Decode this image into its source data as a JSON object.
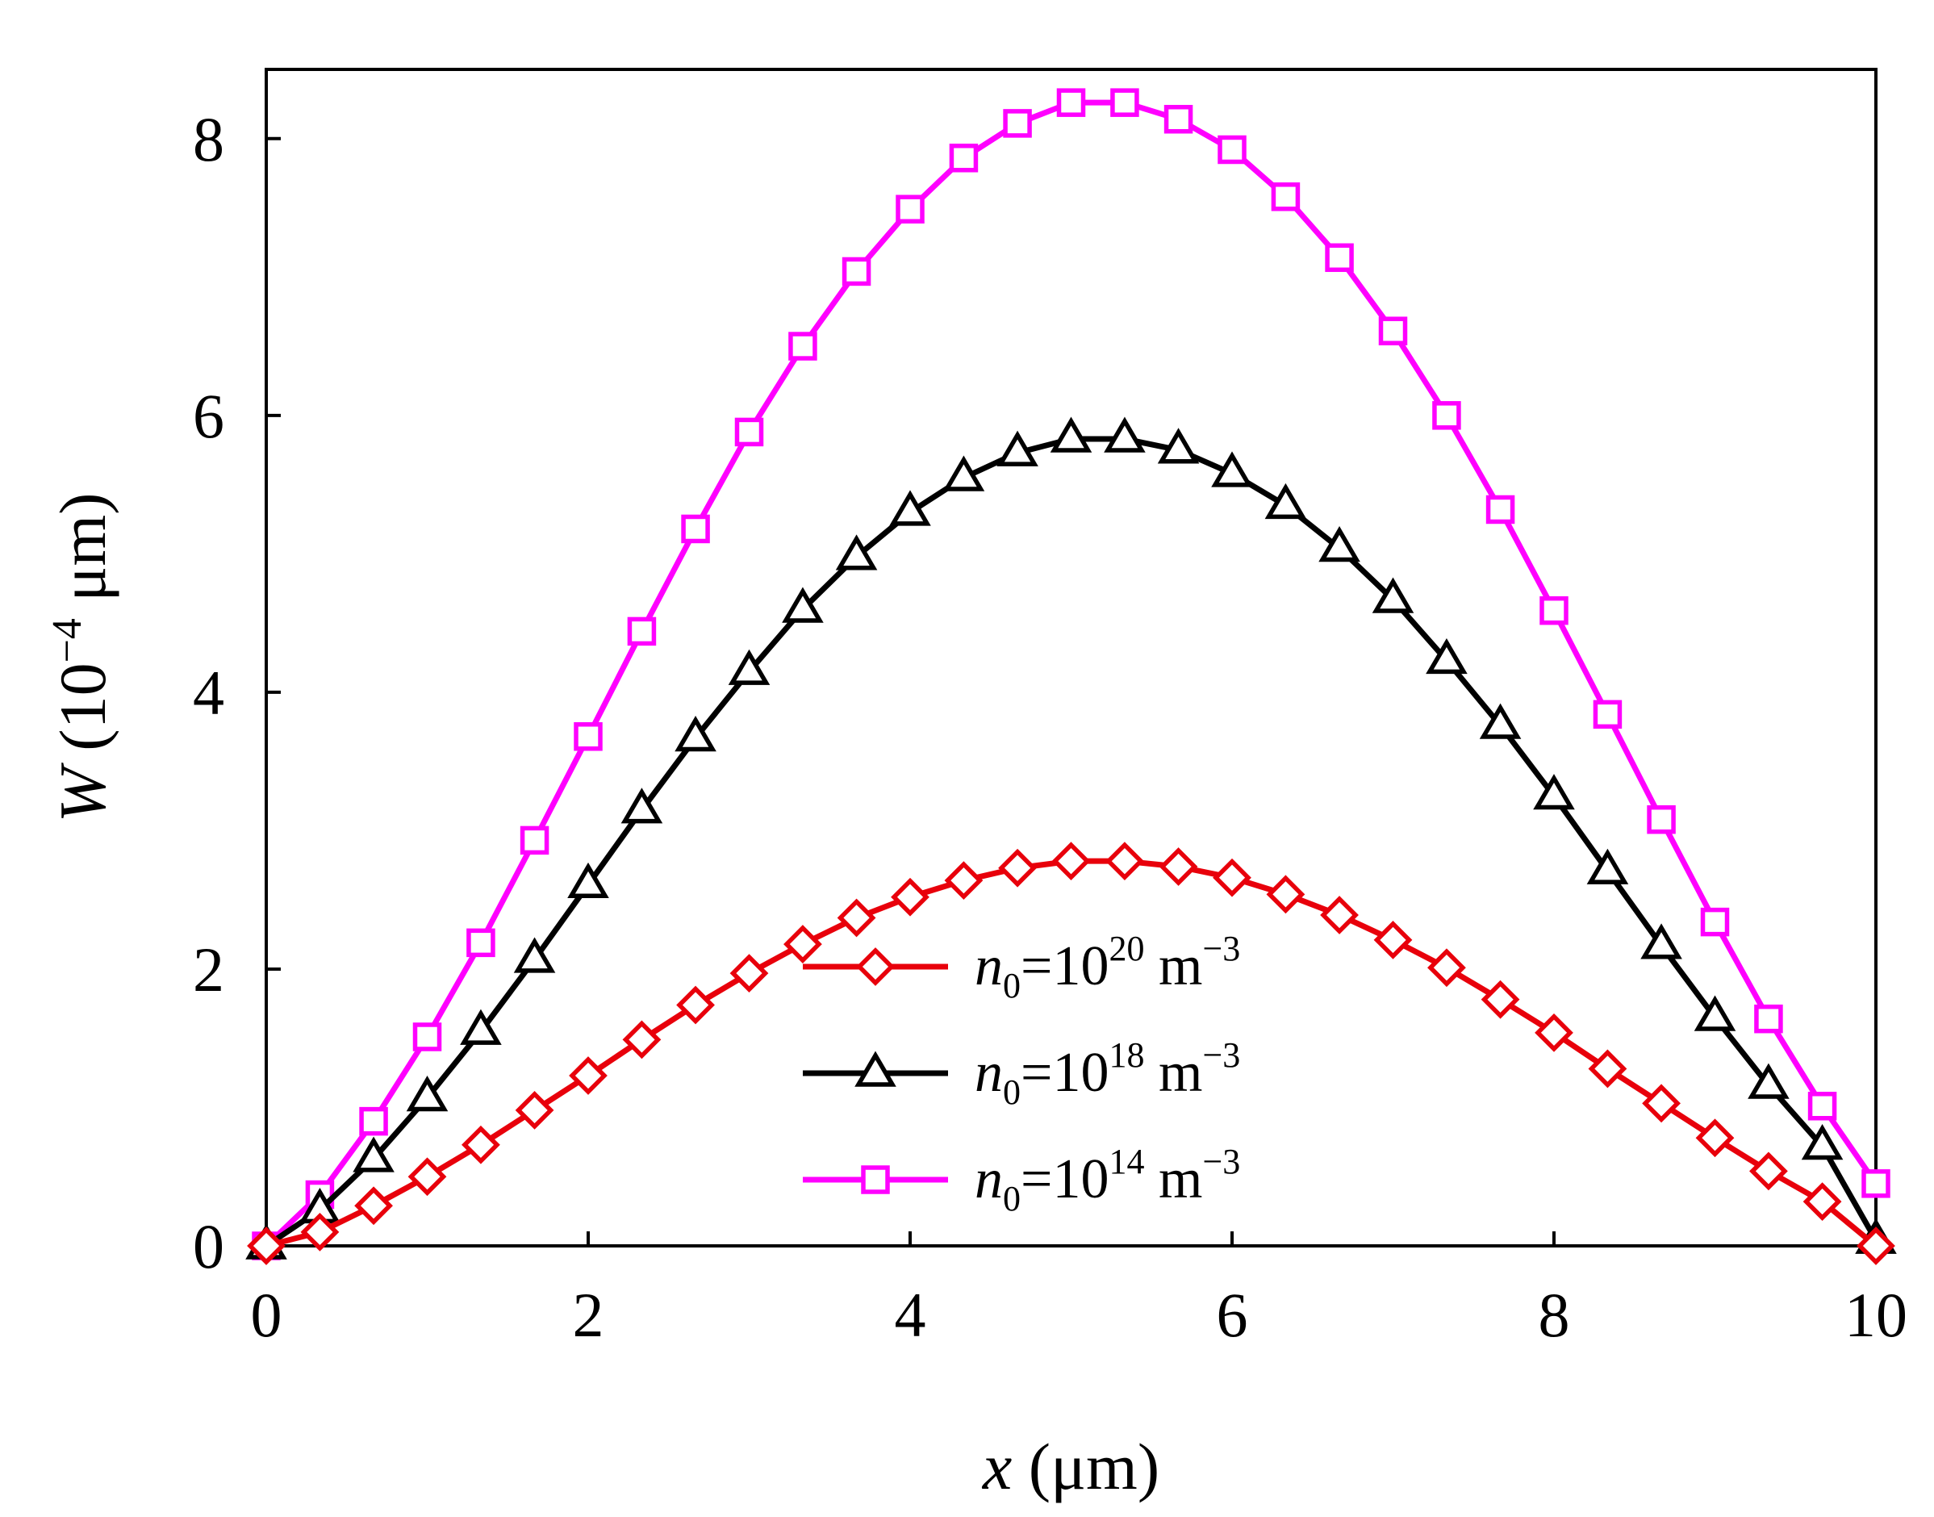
{
  "chart_data": {
    "type": "line",
    "title": "",
    "xlabel": {
      "var": "x",
      "unit": " (μm)"
    },
    "ylabel": {
      "var": "W",
      "pre": " (10",
      "exp": "−4",
      "post": " μm)"
    },
    "xlim": [
      0,
      10
    ],
    "ylim": [
      0,
      8.5
    ],
    "xticks": [
      0,
      2,
      4,
      6,
      8,
      10
    ],
    "yticks": [
      0,
      2,
      4,
      6,
      8
    ],
    "xtick_labels": [
      "0",
      "2",
      "4",
      "6",
      "8",
      "10"
    ],
    "ytick_labels": [
      "0",
      "2",
      "4",
      "6",
      "8"
    ],
    "grid": false,
    "legend_position": "lower-center",
    "x": [
      0,
      0.333,
      0.667,
      1.0,
      1.333,
      1.667,
      2.0,
      2.333,
      2.667,
      3.0,
      3.333,
      3.667,
      4.0,
      4.333,
      4.667,
      5.0,
      5.333,
      5.667,
      6.0,
      6.333,
      6.667,
      7.0,
      7.333,
      7.667,
      8.0,
      8.333,
      8.667,
      9.0,
      9.333,
      9.667,
      10.0
    ],
    "series": [
      {
        "name": "n0=10^20 m^-3",
        "label": {
          "var": "n",
          "sub": "0",
          "eq": "=10",
          "sup": "20",
          "unit": " m",
          "unit_sup": "−3"
        },
        "color": "#e8000b",
        "marker": "diamond",
        "values": [
          0.0,
          0.1,
          0.29,
          0.5,
          0.73,
          0.98,
          1.23,
          1.49,
          1.74,
          1.97,
          2.18,
          2.37,
          2.52,
          2.64,
          2.73,
          2.78,
          2.78,
          2.74,
          2.66,
          2.54,
          2.39,
          2.21,
          2.01,
          1.78,
          1.54,
          1.28,
          1.03,
          0.78,
          0.54,
          0.32,
          0.0
        ]
      },
      {
        "name": "n0=10^18 m^-3",
        "label": {
          "var": "n",
          "sub": "0",
          "eq": "=10",
          "sup": "18",
          "unit": " m",
          "unit_sup": "−3"
        },
        "color": "#000000",
        "marker": "triangle",
        "values": [
          0.0,
          0.26,
          0.63,
          1.07,
          1.55,
          2.07,
          2.61,
          3.15,
          3.67,
          4.15,
          4.6,
          4.98,
          5.3,
          5.55,
          5.73,
          5.83,
          5.83,
          5.75,
          5.58,
          5.35,
          5.04,
          4.67,
          4.23,
          3.76,
          3.25,
          2.71,
          2.17,
          1.65,
          1.16,
          0.72,
          0.04
        ]
      },
      {
        "name": "n0=10^14 m^-3",
        "label": {
          "var": "n",
          "sub": "0",
          "eq": "=10",
          "sup": "14",
          "unit": " m",
          "unit_sup": "−3"
        },
        "color": "#ff00ff",
        "marker": "square",
        "values": [
          0.0,
          0.37,
          0.9,
          1.51,
          2.19,
          2.93,
          3.68,
          4.44,
          5.18,
          5.88,
          6.5,
          7.04,
          7.49,
          7.86,
          8.11,
          8.26,
          8.26,
          8.14,
          7.92,
          7.58,
          7.14,
          6.61,
          6.0,
          5.32,
          4.59,
          3.84,
          3.08,
          2.34,
          1.64,
          1.01,
          0.45
        ]
      }
    ]
  }
}
